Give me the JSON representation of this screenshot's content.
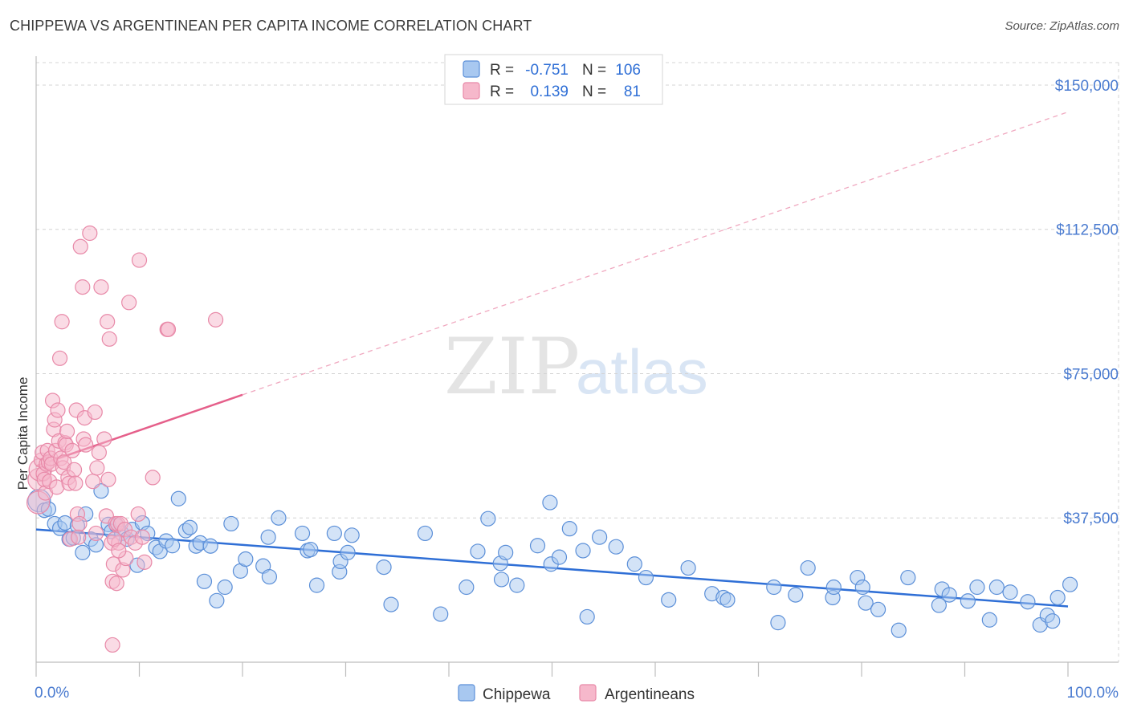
{
  "title": "CHIPPEWA VS ARGENTINEAN PER CAPITA INCOME CORRELATION CHART",
  "source": "Source: ZipAtlas.com",
  "colors": {
    "chippewa_fill": "#a8c8f0",
    "chippewa_stroke": "#5b8fd8",
    "chippewa_line": "#2f6fd6",
    "argentinean_fill": "#f6b8cb",
    "argentinean_stroke": "#e889a8",
    "argentinean_line": "#e55f8a",
    "axis_label": "#4a7bd0"
  },
  "legend": {
    "rows": [
      {
        "r_label": "R =",
        "r_value": "-0.751",
        "n_label": "N =",
        "n_value": "106"
      },
      {
        "r_label": "R =",
        "r_value": "0.139",
        "n_label": "N =",
        "n_value": "81"
      }
    ]
  },
  "watermark": {
    "zip": "ZIP",
    "atlas": "atlas"
  },
  "chart_data": {
    "type": "scatter",
    "title": "CHIPPEWA VS ARGENTINEAN PER CAPITA INCOME CORRELATION CHART",
    "xlabel": "",
    "ylabel": "Per Capita Income",
    "xlim": [
      0,
      100
    ],
    "ylim": [
      0,
      157500
    ],
    "x_tick_labels": [
      "0.0%",
      "100.0%"
    ],
    "y_ticks": [
      37500,
      75000,
      112500,
      150000
    ],
    "y_tick_labels": [
      "$37,500",
      "$75,000",
      "$112,500",
      "$150,000"
    ],
    "grid": true,
    "legend_position": "top-center",
    "series": [
      {
        "name": "Chippewa",
        "r": -0.751,
        "n": 106,
        "trend": {
          "x": [
            0,
            100
          ],
          "y": [
            34500,
            14500
          ],
          "style": "solid"
        },
        "points": [
          [
            0.3,
            42000
          ],
          [
            0.8,
            39500
          ],
          [
            1.2,
            39800
          ],
          [
            1.8,
            36000
          ],
          [
            2.3,
            34800
          ],
          [
            2.8,
            36200
          ],
          [
            3.2,
            32000
          ],
          [
            3.6,
            32300
          ],
          [
            4.0,
            35500
          ],
          [
            4.5,
            28500
          ],
          [
            4.8,
            38500
          ],
          [
            5.3,
            32000
          ],
          [
            5.8,
            30500
          ],
          [
            6.3,
            44500
          ],
          [
            7.0,
            35800
          ],
          [
            7.3,
            34000
          ],
          [
            7.8,
            35500
          ],
          [
            8.3,
            33500
          ],
          [
            8.8,
            32000
          ],
          [
            9.3,
            34500
          ],
          [
            9.8,
            25200
          ],
          [
            10.3,
            36200
          ],
          [
            10.8,
            33500
          ],
          [
            11.6,
            29800
          ],
          [
            12.0,
            28800
          ],
          [
            12.6,
            31500
          ],
          [
            13.2,
            30300
          ],
          [
            13.8,
            42500
          ],
          [
            14.5,
            34200
          ],
          [
            14.9,
            35000
          ],
          [
            15.5,
            30200
          ],
          [
            15.9,
            31000
          ],
          [
            16.3,
            21000
          ],
          [
            16.9,
            30200
          ],
          [
            17.5,
            16000
          ],
          [
            18.3,
            19500
          ],
          [
            18.9,
            36000
          ],
          [
            19.8,
            23700
          ],
          [
            20.3,
            26800
          ],
          [
            22.0,
            25000
          ],
          [
            22.5,
            32500
          ],
          [
            22.6,
            22200
          ],
          [
            23.5,
            37500
          ],
          [
            25.8,
            33500
          ],
          [
            26.3,
            29000
          ],
          [
            26.6,
            29300
          ],
          [
            27.2,
            20000
          ],
          [
            28.9,
            33500
          ],
          [
            29.4,
            23500
          ],
          [
            29.5,
            26200
          ],
          [
            30.2,
            28500
          ],
          [
            30.6,
            33000
          ],
          [
            33.7,
            24700
          ],
          [
            34.4,
            15000
          ],
          [
            37.7,
            33500
          ],
          [
            39.2,
            12500
          ],
          [
            41.7,
            19500
          ],
          [
            42.8,
            28800
          ],
          [
            43.8,
            37300
          ],
          [
            45.0,
            25700
          ],
          [
            45.1,
            21500
          ],
          [
            45.5,
            28500
          ],
          [
            46.6,
            20000
          ],
          [
            48.6,
            30300
          ],
          [
            49.9,
            25500
          ],
          [
            49.8,
            41500
          ],
          [
            50.7,
            27300
          ],
          [
            51.7,
            34700
          ],
          [
            53.0,
            29000
          ],
          [
            53.4,
            11800
          ],
          [
            54.6,
            32500
          ],
          [
            56.2,
            30000
          ],
          [
            58.0,
            25500
          ],
          [
            59.1,
            22000
          ],
          [
            61.3,
            16200
          ],
          [
            63.2,
            24500
          ],
          [
            65.5,
            17800
          ],
          [
            66.6,
            16800
          ],
          [
            67.0,
            16200
          ],
          [
            71.5,
            19500
          ],
          [
            71.9,
            10300
          ],
          [
            73.6,
            17500
          ],
          [
            74.8,
            24500
          ],
          [
            77.2,
            16800
          ],
          [
            77.3,
            19500
          ],
          [
            79.6,
            22000
          ],
          [
            80.1,
            19500
          ],
          [
            80.4,
            15400
          ],
          [
            81.6,
            13700
          ],
          [
            83.6,
            8300
          ],
          [
            84.5,
            22000
          ],
          [
            87.5,
            14800
          ],
          [
            87.8,
            19000
          ],
          [
            88.5,
            17500
          ],
          [
            90.3,
            15900
          ],
          [
            91.2,
            19500
          ],
          [
            92.4,
            11000
          ],
          [
            93.1,
            19500
          ],
          [
            94.4,
            18200
          ],
          [
            96.1,
            15700
          ],
          [
            97.3,
            9700
          ],
          [
            98.0,
            12200
          ],
          [
            98.5,
            10700
          ],
          [
            99.0,
            16800
          ],
          [
            100.2,
            20200
          ]
        ]
      },
      {
        "name": "Argentineans",
        "r": 0.139,
        "n": 81,
        "trend": {
          "x": [
            0,
            20,
            100
          ],
          "y": [
            51000,
            69500,
            143000
          ],
          "style": "solid-then-dashed"
        },
        "points": [
          [
            0.2,
            41500
          ],
          [
            0.3,
            47500
          ],
          [
            0.4,
            50000
          ],
          [
            0.5,
            52500
          ],
          [
            0.6,
            54500
          ],
          [
            0.7,
            49000
          ],
          [
            0.8,
            47500
          ],
          [
            0.9,
            44000
          ],
          [
            1.0,
            51500
          ],
          [
            1.1,
            55000
          ],
          [
            1.2,
            52000
          ],
          [
            1.3,
            47000
          ],
          [
            1.4,
            53000
          ],
          [
            1.5,
            51500
          ],
          [
            1.6,
            68000
          ],
          [
            1.7,
            60500
          ],
          [
            1.8,
            63000
          ],
          [
            1.9,
            55000
          ],
          [
            2.0,
            45500
          ],
          [
            2.1,
            65500
          ],
          [
            2.2,
            57500
          ],
          [
            2.3,
            79000
          ],
          [
            2.4,
            53000
          ],
          [
            2.5,
            88500
          ],
          [
            2.6,
            50500
          ],
          [
            2.7,
            52000
          ],
          [
            2.8,
            57000
          ],
          [
            2.9,
            56500
          ],
          [
            3.0,
            60000
          ],
          [
            3.1,
            48000
          ],
          [
            3.2,
            46500
          ],
          [
            3.3,
            32000
          ],
          [
            3.5,
            55000
          ],
          [
            3.7,
            50000
          ],
          [
            3.8,
            46500
          ],
          [
            3.9,
            65500
          ],
          [
            4.0,
            38500
          ],
          [
            4.1,
            32500
          ],
          [
            4.2,
            36000
          ],
          [
            4.3,
            108000
          ],
          [
            4.5,
            97500
          ],
          [
            4.6,
            58000
          ],
          [
            4.7,
            63500
          ],
          [
            4.8,
            56500
          ],
          [
            5.2,
            111500
          ],
          [
            5.5,
            47000
          ],
          [
            5.7,
            65000
          ],
          [
            5.8,
            33500
          ],
          [
            5.9,
            50500
          ],
          [
            6.1,
            54500
          ],
          [
            6.3,
            97500
          ],
          [
            6.6,
            58000
          ],
          [
            6.8,
            38000
          ],
          [
            6.9,
            88500
          ],
          [
            7.0,
            47500
          ],
          [
            7.1,
            84000
          ],
          [
            7.3,
            31000
          ],
          [
            7.5,
            25500
          ],
          [
            7.7,
            36000
          ],
          [
            7.9,
            36000
          ],
          [
            8.0,
            31000
          ],
          [
            8.2,
            36000
          ],
          [
            8.4,
            24000
          ],
          [
            8.6,
            34500
          ],
          [
            8.7,
            27000
          ],
          [
            9.0,
            93500
          ],
          [
            9.2,
            32500
          ],
          [
            9.6,
            31000
          ],
          [
            9.9,
            38500
          ],
          [
            10.0,
            104500
          ],
          [
            10.3,
            32500
          ],
          [
            10.5,
            26000
          ],
          [
            11.3,
            48000
          ],
          [
            12.7,
            86500
          ],
          [
            12.8,
            86500
          ],
          [
            17.4,
            89000
          ],
          [
            7.4,
            21000
          ],
          [
            7.8,
            20500
          ],
          [
            7.6,
            32000
          ],
          [
            8.0,
            29000
          ],
          [
            7.4,
            4500
          ]
        ]
      }
    ]
  },
  "bottom_legend": [
    {
      "label": "Chippewa"
    },
    {
      "label": "Argentineans"
    }
  ]
}
